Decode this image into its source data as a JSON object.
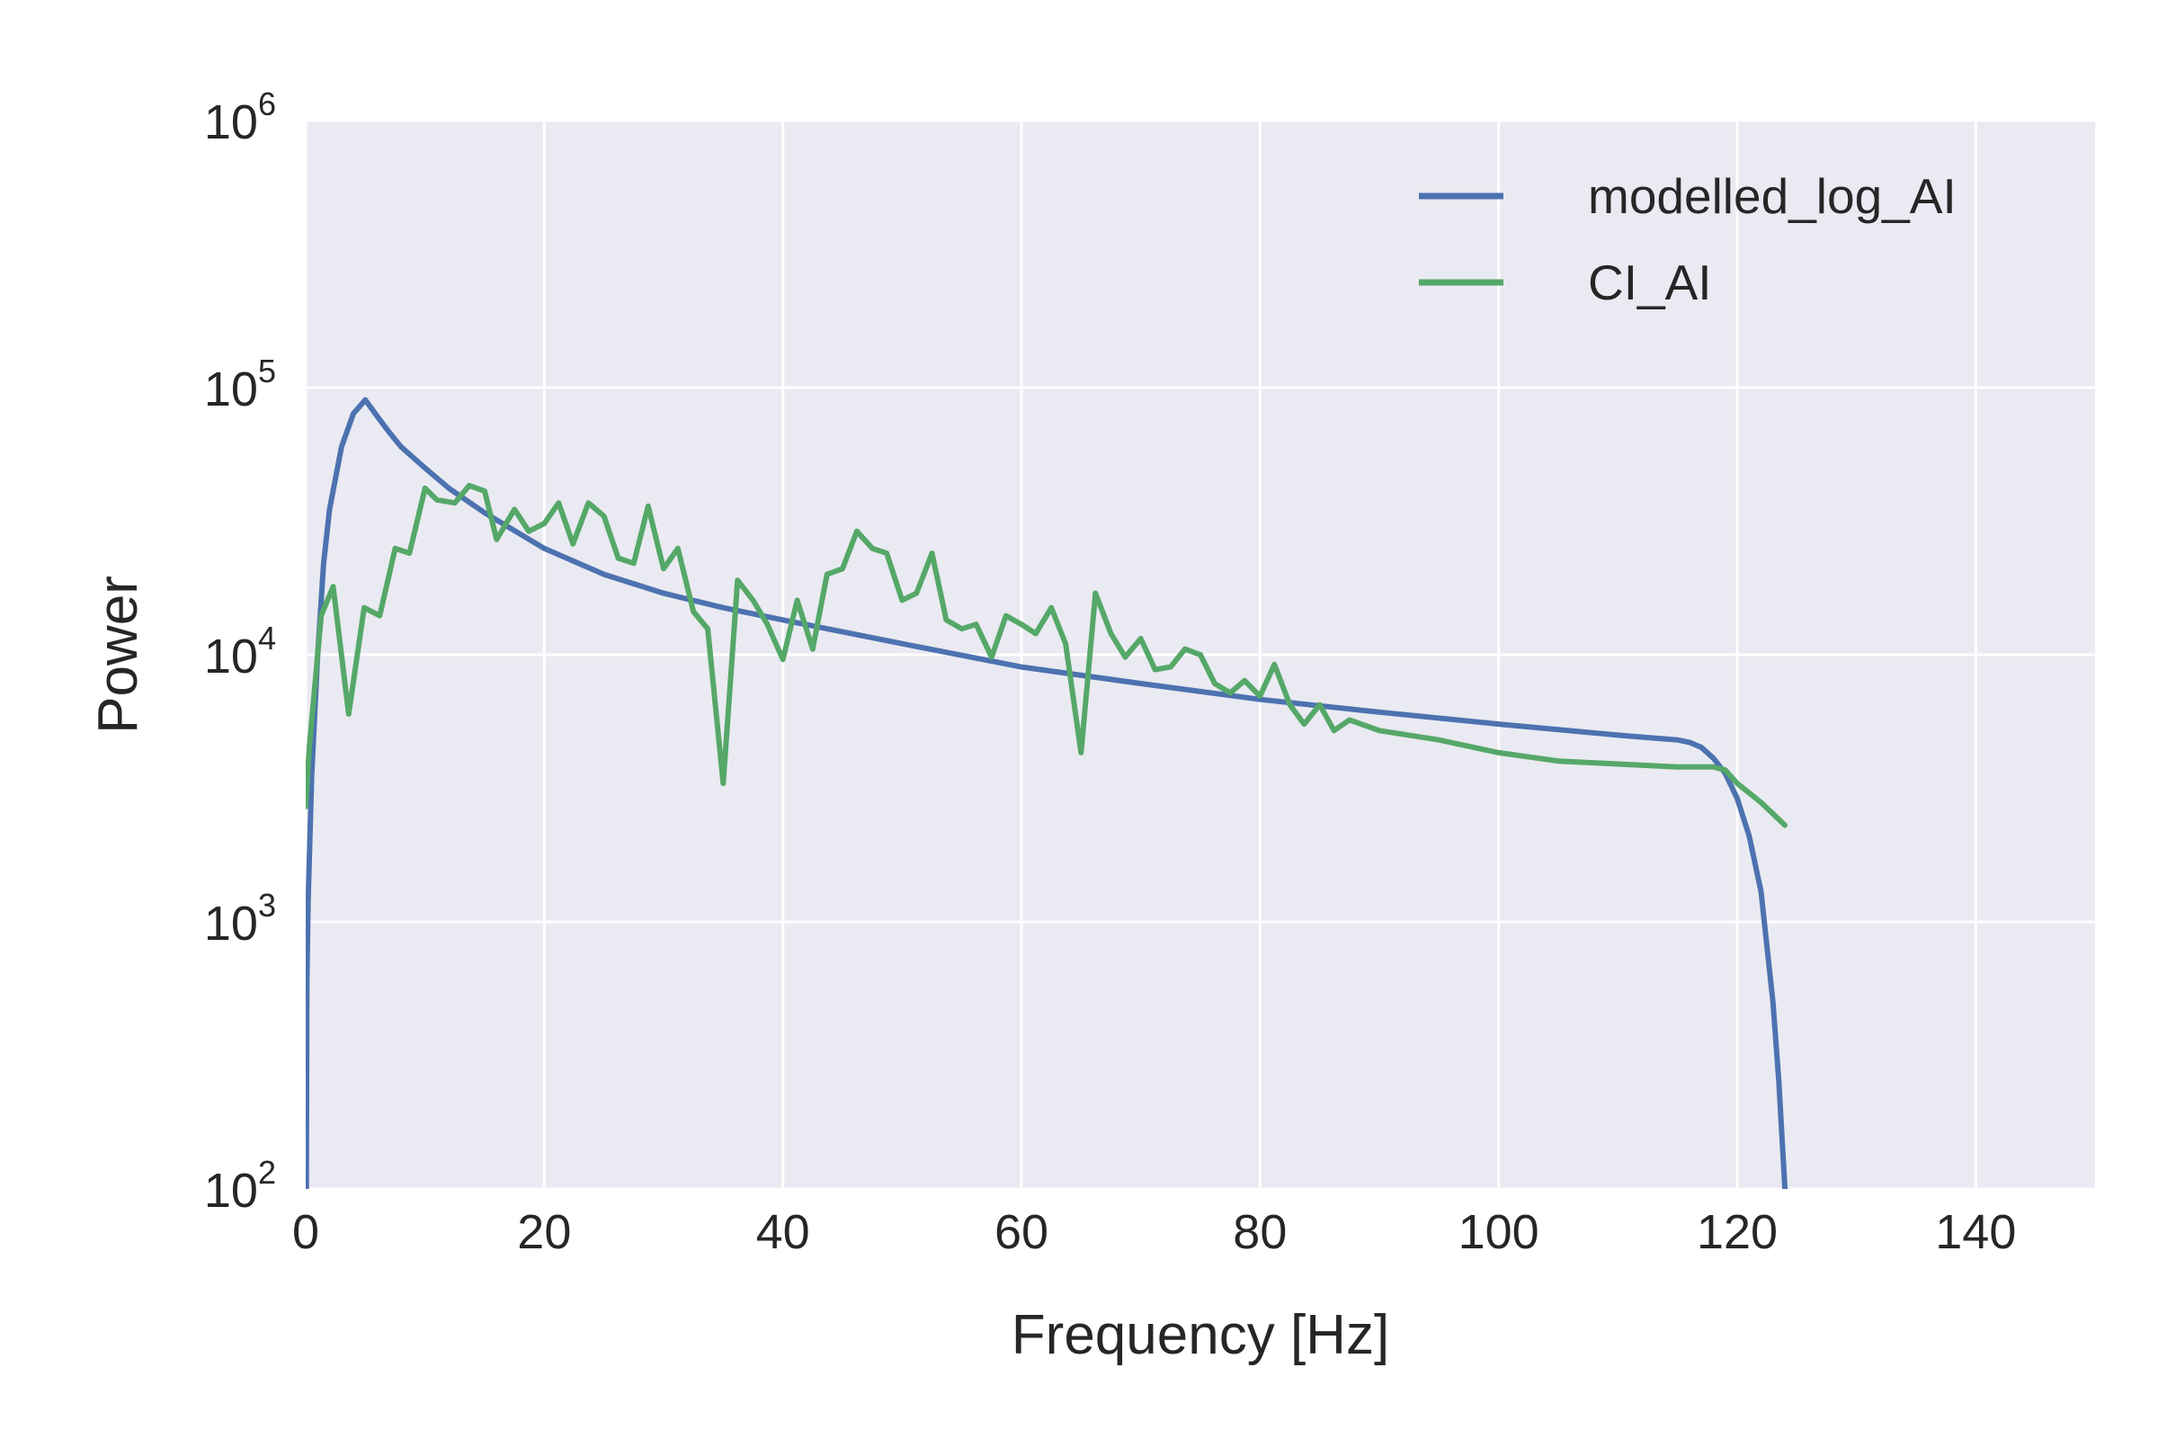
{
  "chart_data": {
    "type": "line",
    "xlabel": "Frequency [Hz]",
    "ylabel": "Power",
    "xlim": [
      0,
      150
    ],
    "ylim": [
      100,
      1000000
    ],
    "yscale": "log",
    "grid": true,
    "legend_position": "top-right",
    "background_color": "#EAEAF2",
    "grid_color": "#FFFFFF",
    "xticks": [
      {
        "value": 0,
        "label": "0"
      },
      {
        "value": 20,
        "label": "20"
      },
      {
        "value": 40,
        "label": "40"
      },
      {
        "value": 60,
        "label": "60"
      },
      {
        "value": 80,
        "label": "80"
      },
      {
        "value": 100,
        "label": "100"
      },
      {
        "value": 120,
        "label": "120"
      },
      {
        "value": 140,
        "label": "140"
      }
    ],
    "yticks": [
      {
        "value": 100,
        "base": "10",
        "exp": "2"
      },
      {
        "value": 1000,
        "base": "10",
        "exp": "3"
      },
      {
        "value": 10000,
        "base": "10",
        "exp": "4"
      },
      {
        "value": 100000,
        "base": "10",
        "exp": "5"
      },
      {
        "value": 1000000,
        "base": "10",
        "exp": "6"
      }
    ],
    "series": [
      {
        "name": "modelled_log_AI",
        "color": "#4C72B0",
        "points": [
          [
            0.05,
            100
          ],
          [
            0.1,
            600
          ],
          [
            0.2,
            1200
          ],
          [
            0.5,
            3500
          ],
          [
            1,
            10000
          ],
          [
            1.5,
            22000
          ],
          [
            2,
            35000
          ],
          [
            3,
            60000
          ],
          [
            4,
            80000
          ],
          [
            5,
            90000
          ],
          [
            6,
            78000
          ],
          [
            7,
            68000
          ],
          [
            8,
            60000
          ],
          [
            10,
            50000
          ],
          [
            12,
            42000
          ],
          [
            15,
            34000
          ],
          [
            20,
            25000
          ],
          [
            25,
            20000
          ],
          [
            30,
            17000
          ],
          [
            35,
            15000
          ],
          [
            40,
            13500
          ],
          [
            50,
            11000
          ],
          [
            60,
            9000
          ],
          [
            70,
            7800
          ],
          [
            80,
            6800
          ],
          [
            90,
            6100
          ],
          [
            100,
            5500
          ],
          [
            110,
            5000
          ],
          [
            115,
            4800
          ],
          [
            116,
            4700
          ],
          [
            117,
            4500
          ],
          [
            118,
            4100
          ],
          [
            119,
            3600
          ],
          [
            120,
            2900
          ],
          [
            121,
            2100
          ],
          [
            122,
            1300
          ],
          [
            123,
            500
          ],
          [
            123.5,
            250
          ],
          [
            124,
            100
          ]
        ]
      },
      {
        "name": "CI_AI",
        "color": "#55A868",
        "points": [
          [
            0,
            2700
          ],
          [
            0.3,
            4500
          ],
          [
            1.3,
            14000
          ],
          [
            2.3,
            18000
          ],
          [
            3.6,
            6000
          ],
          [
            4.9,
            15000
          ],
          [
            6.2,
            14000
          ],
          [
            7.5,
            25000
          ],
          [
            8.7,
            24000
          ],
          [
            10,
            42000
          ],
          [
            11,
            38000
          ],
          [
            12.5,
            37000
          ],
          [
            13.7,
            43000
          ],
          [
            15,
            41000
          ],
          [
            16,
            27000
          ],
          [
            17.5,
            35000
          ],
          [
            18.7,
            29000
          ],
          [
            20,
            31000
          ],
          [
            21.2,
            37000
          ],
          [
            22.4,
            26000
          ],
          [
            23.7,
            37000
          ],
          [
            25,
            33000
          ],
          [
            26.2,
            23000
          ],
          [
            27.5,
            22000
          ],
          [
            28.7,
            36000
          ],
          [
            30,
            21000
          ],
          [
            31.2,
            25000
          ],
          [
            32.5,
            14500
          ],
          [
            33.7,
            12500
          ],
          [
            35,
            3300
          ],
          [
            36.2,
            19000
          ],
          [
            37.5,
            16000
          ],
          [
            38.7,
            13000
          ],
          [
            40,
            9600
          ],
          [
            41.2,
            16000
          ],
          [
            42.5,
            10500
          ],
          [
            43.7,
            20000
          ],
          [
            45,
            21000
          ],
          [
            46.2,
            29000
          ],
          [
            47.5,
            25000
          ],
          [
            48.7,
            24000
          ],
          [
            50,
            16000
          ],
          [
            51.2,
            17000
          ],
          [
            52.5,
            24000
          ],
          [
            53.7,
            13500
          ],
          [
            55,
            12500
          ],
          [
            56.2,
            13000
          ],
          [
            57.5,
            9800
          ],
          [
            58.7,
            14000
          ],
          [
            60,
            13000
          ],
          [
            61.2,
            12000
          ],
          [
            62.5,
            15000
          ],
          [
            63.7,
            11000
          ],
          [
            65,
            4300
          ],
          [
            66.2,
            17000
          ],
          [
            67.5,
            12000
          ],
          [
            68.7,
            9800
          ],
          [
            70,
            11500
          ],
          [
            71.2,
            8800
          ],
          [
            72.5,
            9000
          ],
          [
            73.7,
            10500
          ],
          [
            75,
            10000
          ],
          [
            76.2,
            7800
          ],
          [
            77.5,
            7200
          ],
          [
            78.7,
            8000
          ],
          [
            80,
            7000
          ],
          [
            81.2,
            9200
          ],
          [
            82.5,
            6500
          ],
          [
            83.7,
            5500
          ],
          [
            85,
            6500
          ],
          [
            86.2,
            5200
          ],
          [
            87.5,
            5700
          ],
          [
            90,
            5200
          ],
          [
            95,
            4800
          ],
          [
            100,
            4300
          ],
          [
            105,
            4000
          ],
          [
            110,
            3900
          ],
          [
            115,
            3800
          ],
          [
            117,
            3800
          ],
          [
            118,
            3800
          ],
          [
            119,
            3700
          ],
          [
            120,
            3300
          ],
          [
            122,
            2800
          ],
          [
            124,
            2300
          ]
        ]
      }
    ]
  }
}
